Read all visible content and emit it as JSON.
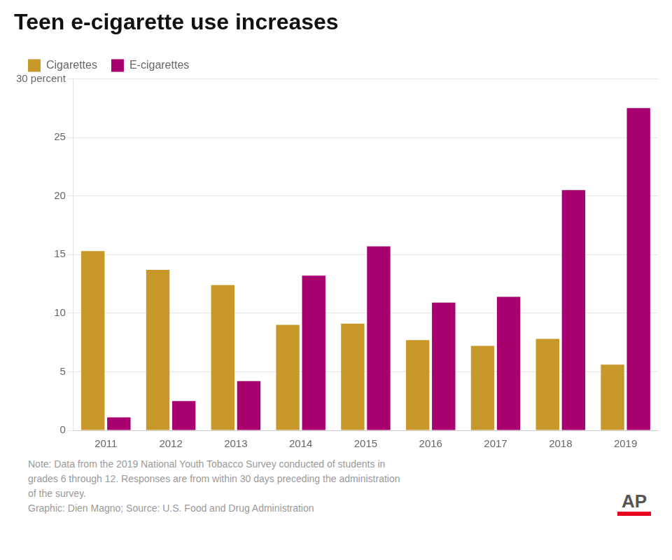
{
  "chart_data": {
    "type": "bar",
    "title": "Teen e-cigarette use increases",
    "categories": [
      "2011",
      "2012",
      "2013",
      "2014",
      "2015",
      "2016",
      "2017",
      "2018",
      "2019"
    ],
    "series": [
      {
        "name": "Cigarettes",
        "color": "#C8982A",
        "values": [
          15.3,
          13.7,
          12.4,
          9.0,
          9.1,
          7.7,
          7.2,
          7.8,
          5.6
        ]
      },
      {
        "name": "E-cigarettes",
        "color": "#A8006E",
        "values": [
          1.1,
          2.5,
          4.2,
          13.2,
          15.7,
          10.9,
          11.4,
          20.5,
          27.5
        ]
      }
    ],
    "ylim": [
      0,
      30
    ],
    "yticks": [
      0,
      5,
      10,
      15,
      20,
      25,
      {
        "value": 30,
        "label": "30 percent"
      }
    ],
    "grid": true,
    "legend": "top",
    "annotations": [
      "Note: Data from the 2019 National Youth Tobacco Survey conducted of students in",
      "grades 6 through 12. Responses are from within 30 days preceding the administration",
      "of the survey.",
      "Graphic: Dien Magno; Source: U.S. Food and Drug Administration",
      "AP"
    ]
  }
}
